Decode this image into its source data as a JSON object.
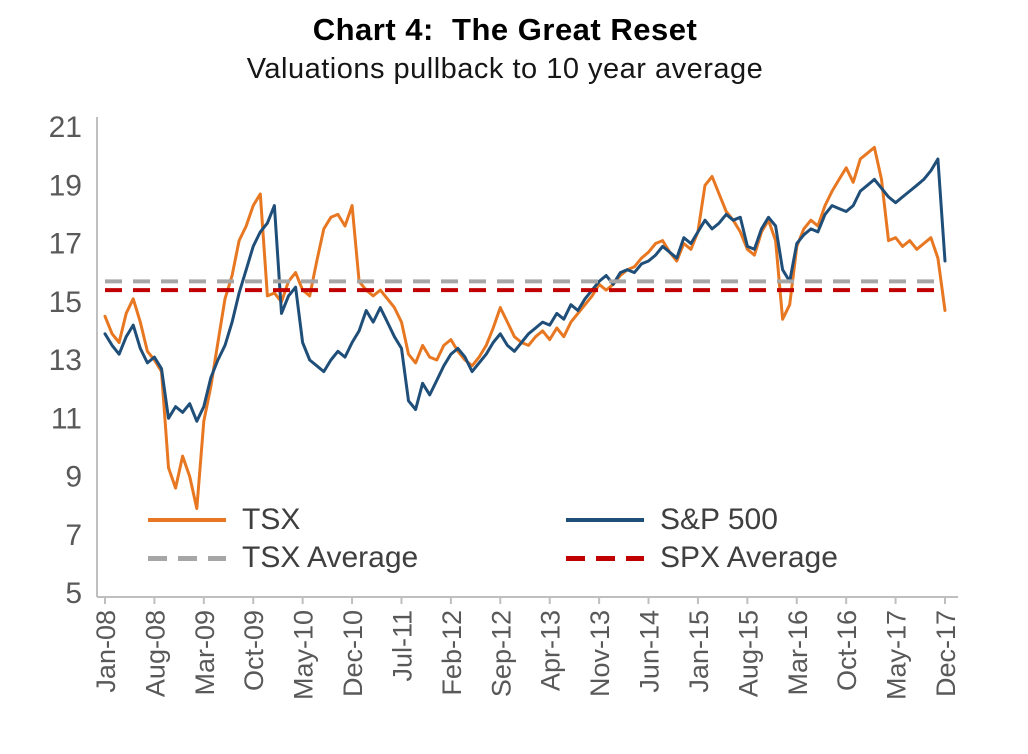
{
  "title": "Chart 4:  The Great Reset",
  "subtitle": "Valuations pullback to 10 year average",
  "chart_data": {
    "type": "line",
    "title": "Chart 4: The Great Reset",
    "subtitle": "Valuations pullback to 10 year average",
    "ylim": [
      5,
      21
    ],
    "y_ticks": [
      5,
      7,
      9,
      11,
      13,
      15,
      17,
      19,
      21
    ],
    "n_points": 120,
    "tick_every": 7,
    "x_tick_labels": [
      "Jan-08",
      "Aug-08",
      "Mar-09",
      "Oct-09",
      "May-10",
      "Dec-10",
      "Jul-11",
      "Feb-12",
      "Sep-12",
      "Apr-13",
      "Nov-13",
      "Jun-14",
      "Jan-15",
      "Aug-15",
      "Mar-16",
      "Oct-16",
      "May-17",
      "Dec-17"
    ],
    "grid": false,
    "legend_position": "inside-bottom-left",
    "axis_color": "#BFBFBF",
    "axis_text_color": "#595959",
    "series": [
      {
        "key": "tsx",
        "name": "TSX",
        "color": "#E87722",
        "values": [
          14.5,
          13.9,
          13.6,
          14.6,
          15.1,
          14.3,
          13.3,
          13.0,
          12.6,
          9.3,
          8.6,
          9.7,
          9.0,
          7.9,
          10.9,
          12.1,
          13.6,
          15.1,
          15.9,
          17.1,
          17.6,
          18.3,
          18.7,
          15.2,
          15.3,
          15.0,
          15.7,
          16.0,
          15.4,
          15.2,
          16.4,
          17.5,
          17.9,
          18.0,
          17.6,
          18.3,
          15.7,
          15.4,
          15.2,
          15.4,
          15.1,
          14.8,
          14.3,
          13.2,
          12.9,
          13.5,
          13.1,
          13.0,
          13.5,
          13.7,
          13.3,
          13.0,
          12.8,
          13.1,
          13.5,
          14.1,
          14.8,
          14.3,
          13.8,
          13.6,
          13.5,
          13.8,
          14.0,
          13.7,
          14.1,
          13.8,
          14.3,
          14.6,
          14.9,
          15.2,
          15.6,
          15.4,
          15.6,
          15.9,
          16.1,
          16.2,
          16.5,
          16.7,
          17.0,
          17.1,
          16.7,
          16.4,
          17.0,
          16.8,
          17.4,
          19.0,
          19.3,
          18.7,
          18.1,
          17.8,
          17.4,
          16.8,
          16.6,
          17.4,
          17.8,
          17.1,
          14.4,
          14.9,
          16.9,
          17.5,
          17.8,
          17.6,
          18.3,
          18.8,
          19.2,
          19.6,
          19.1,
          19.9,
          20.1,
          20.3,
          19.2,
          17.1,
          17.2,
          16.9,
          17.1,
          16.8,
          17.0,
          17.2,
          16.5,
          14.7
        ]
      },
      {
        "key": "sp500",
        "name": "S&P 500",
        "color": "#1F4E79",
        "values": [
          13.9,
          13.5,
          13.2,
          13.8,
          14.2,
          13.4,
          12.9,
          13.1,
          12.7,
          11.0,
          11.4,
          11.2,
          11.5,
          10.9,
          11.4,
          12.4,
          13.0,
          13.5,
          14.3,
          15.3,
          16.1,
          16.9,
          17.4,
          17.7,
          18.3,
          14.6,
          15.2,
          15.5,
          13.6,
          13.0,
          12.8,
          12.6,
          13.0,
          13.3,
          13.1,
          13.6,
          14.0,
          14.7,
          14.3,
          14.8,
          14.3,
          13.8,
          13.4,
          11.6,
          11.3,
          12.2,
          11.8,
          12.3,
          12.8,
          13.2,
          13.4,
          13.1,
          12.6,
          12.9,
          13.2,
          13.6,
          13.9,
          13.5,
          13.3,
          13.6,
          13.9,
          14.1,
          14.3,
          14.2,
          14.6,
          14.4,
          14.9,
          14.7,
          15.1,
          15.4,
          15.7,
          15.9,
          15.6,
          16.0,
          16.1,
          16.0,
          16.3,
          16.4,
          16.6,
          16.9,
          16.7,
          16.5,
          17.2,
          17.0,
          17.4,
          17.8,
          17.5,
          17.7,
          18.0,
          17.8,
          17.9,
          16.9,
          16.8,
          17.5,
          17.9,
          17.6,
          16.1,
          15.7,
          17.0,
          17.3,
          17.5,
          17.4,
          18.0,
          18.3,
          18.2,
          18.1,
          18.3,
          18.8,
          19.0,
          19.2,
          18.9,
          18.6,
          18.4,
          18.6,
          18.8,
          19.0,
          19.2,
          19.5,
          19.9,
          16.4
        ]
      }
    ],
    "avg_lines": [
      {
        "key": "tsx-average",
        "name": "TSX Average",
        "color": "#A6A6A6",
        "value": 15.7
      },
      {
        "key": "spx-average",
        "name": "SPX Average",
        "color": "#C00000",
        "value": 15.4
      }
    ],
    "legend": {
      "tsx": "TSX",
      "sp500": "S&P 500",
      "tsx_avg": "TSX Average",
      "spx_avg": "SPX Average"
    }
  }
}
